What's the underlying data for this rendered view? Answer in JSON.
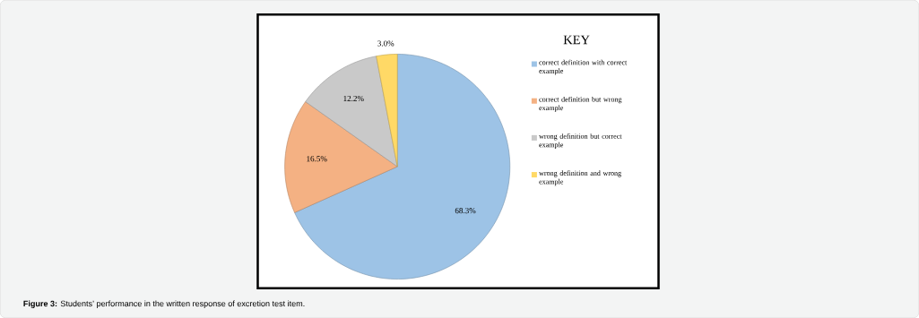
{
  "chart_data": {
    "type": "pie",
    "legend_title": "KEY",
    "categories": [
      "correct definition with correct example",
      "correct definition but wrong example",
      "wrong definition but correct example",
      "wrong definition and wrong example"
    ],
    "values": [
      68.3,
      16.5,
      12.2,
      3.0
    ],
    "colors": [
      "#9dc3e6",
      "#f4b183",
      "#c9c9c9",
      "#ffd966"
    ],
    "value_labels": [
      "68.3%",
      "16.5%",
      "12.2%",
      "3.0%"
    ],
    "legend": "right",
    "annotations": [
      "**Figure 3:** Students’ performance in the written response of excretion test item."
    ]
  }
}
